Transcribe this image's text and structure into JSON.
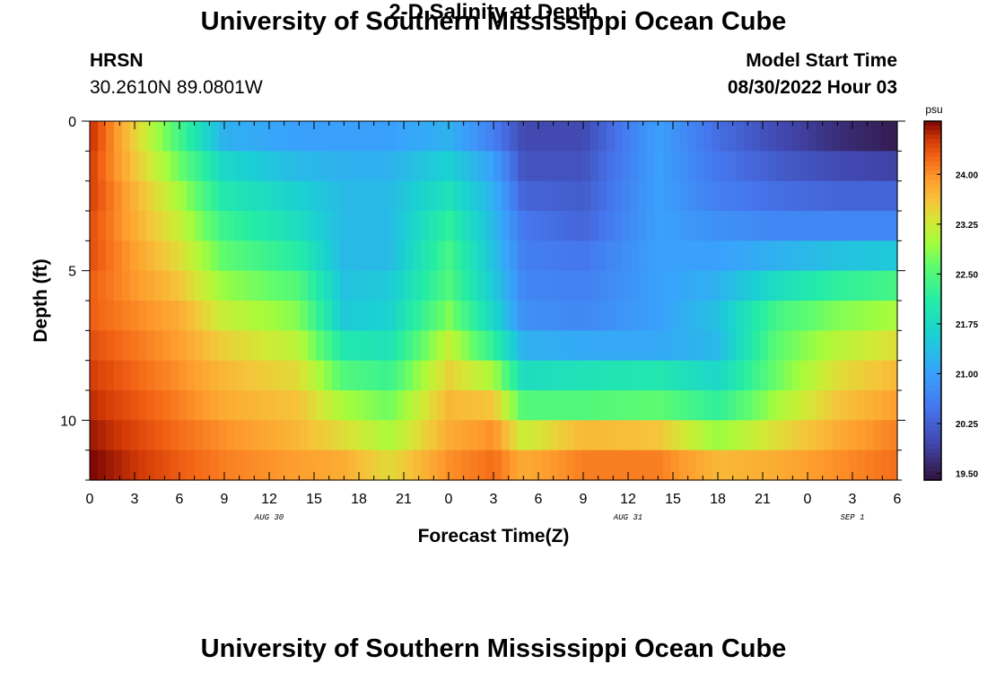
{
  "header": {
    "title": "University of Southern Mississippi Ocean Cube",
    "station": "HRSN",
    "coordinates": "30.2610N  89.0801W",
    "subtitle": "2-D Salinity at Depth",
    "start_label": "Model Start Time",
    "start_value": "08/30/2022 Hour 03"
  },
  "footer": {
    "title": "University of Southern Mississippi Ocean Cube"
  },
  "chart_data": {
    "type": "heatmap",
    "title": "2-D Salinity at Depth",
    "xlabel": "Forecast Time(Z)",
    "ylabel": "Depth (ft)",
    "x_ticks": [
      "0",
      "3",
      "6",
      "9",
      "12",
      "15",
      "18",
      "21",
      "0",
      "3",
      "6",
      "9",
      "12",
      "15",
      "18",
      "21",
      "0",
      "3",
      "6"
    ],
    "x_range_hours": [
      0,
      54
    ],
    "date_labels": [
      {
        "text": "AUG 30",
        "hour": 12
      },
      {
        "text": "AUG 31",
        "hour": 36
      },
      {
        "text": "SEP 1",
        "hour": 51
      }
    ],
    "y_ticks": [
      "0",
      "5",
      "10"
    ],
    "y_range_ft": [
      0,
      12
    ],
    "colorbar": {
      "unit": "psu",
      "min": 19.4,
      "max": 24.8,
      "tick_labels": [
        "24.00",
        "23.25",
        "22.50",
        "21.75",
        "21.00",
        "20.25",
        "19.50"
      ],
      "tick_values": [
        24.0,
        23.25,
        22.5,
        21.75,
        21.0,
        20.25,
        19.5
      ]
    },
    "depth_layers_ft": [
      0.5,
      1.5,
      2.5,
      3.5,
      4.5,
      5.5,
      6.5,
      7.5,
      8.5,
      9.5,
      10.5,
      11.5
    ],
    "time_nodes_hours": [
      0,
      6,
      9,
      14,
      17,
      20,
      24,
      27,
      29,
      33,
      38,
      42,
      46,
      50,
      54
    ],
    "salinity_psu": [
      [
        24.6,
        22.4,
        21.2,
        21.0,
        21.0,
        21.0,
        21.2,
        20.6,
        20.0,
        20.0,
        21.0,
        20.4,
        20.0,
        19.7,
        19.5
      ],
      [
        24.5,
        22.7,
        21.7,
        21.3,
        21.2,
        21.2,
        21.6,
        21.0,
        20.1,
        20.1,
        21.0,
        20.5,
        20.2,
        20.0,
        19.9
      ],
      [
        24.5,
        23.0,
        22.0,
        21.6,
        21.3,
        21.3,
        21.9,
        21.2,
        20.3,
        20.2,
        21.0,
        20.6,
        20.4,
        20.3,
        20.3
      ],
      [
        24.4,
        23.2,
        22.3,
        21.8,
        21.3,
        21.3,
        22.2,
        21.3,
        20.5,
        20.3,
        21.0,
        20.8,
        20.7,
        20.7,
        20.7
      ],
      [
        24.4,
        23.4,
        22.6,
        22.1,
        21.3,
        21.3,
        22.4,
        21.4,
        20.6,
        20.5,
        21.0,
        21.0,
        21.2,
        21.4,
        21.5
      ],
      [
        24.3,
        23.6,
        22.9,
        22.5,
        21.4,
        21.5,
        22.5,
        21.5,
        20.7,
        20.6,
        21.0,
        21.2,
        21.8,
        22.2,
        22.4
      ],
      [
        24.3,
        23.8,
        23.2,
        22.8,
        21.5,
        21.6,
        22.8,
        21.7,
        20.8,
        20.7,
        21.0,
        21.4,
        22.4,
        22.8,
        23.0
      ],
      [
        24.4,
        23.9,
        23.5,
        23.1,
        22.0,
        21.9,
        23.2,
        22.2,
        21.2,
        21.1,
        21.1,
        21.3,
        22.6,
        23.1,
        23.4
      ],
      [
        24.5,
        24.0,
        23.7,
        23.4,
        22.5,
        22.3,
        23.5,
        23.0,
        21.8,
        21.9,
        22.0,
        21.7,
        22.7,
        23.4,
        23.7
      ],
      [
        24.6,
        24.1,
        23.8,
        23.6,
        23.0,
        22.7,
        23.7,
        23.6,
        22.5,
        22.5,
        22.6,
        22.2,
        23.0,
        23.6,
        23.9
      ],
      [
        24.7,
        24.2,
        24.0,
        23.7,
        23.4,
        23.0,
        23.8,
        24.0,
        23.2,
        23.7,
        23.6,
        22.9,
        23.4,
        23.8,
        24.1
      ],
      [
        24.8,
        24.3,
        24.1,
        23.9,
        23.8,
        23.4,
        24.0,
        24.2,
        23.8,
        24.1,
        24.1,
        23.7,
        23.8,
        24.0,
        24.2
      ]
    ]
  },
  "colors": {
    "text": "#000000",
    "background": "#ffffff"
  }
}
